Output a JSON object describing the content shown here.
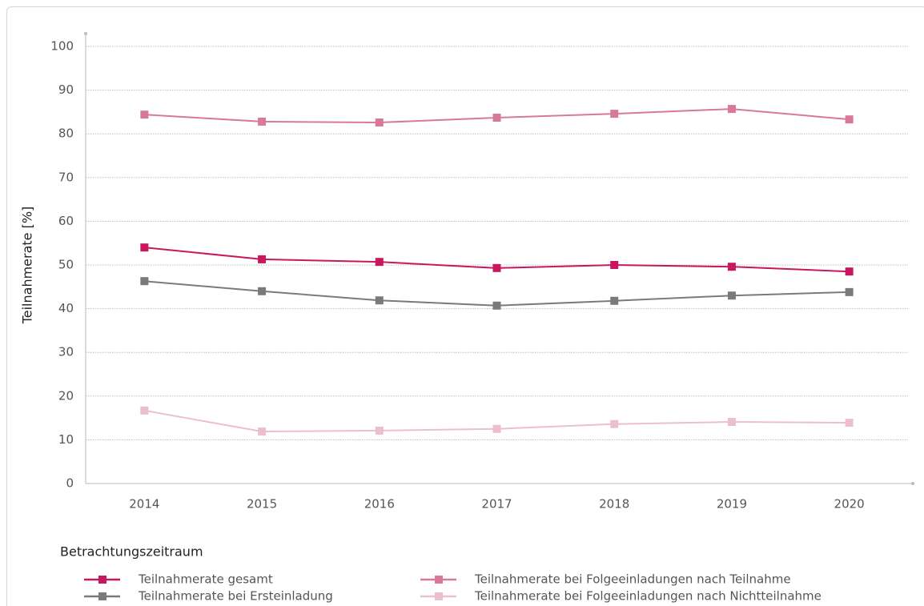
{
  "chart_data": {
    "type": "line",
    "y_label": "Teilnahmerate [%]",
    "x_label": "Betrachtungszeitraum",
    "categories": [
      "2014",
      "2015",
      "2016",
      "2017",
      "2018",
      "2019",
      "2020"
    ],
    "series": [
      {
        "name": "Teilnahmerate gesamt",
        "color": "#c8175e",
        "values": [
          54.0,
          51.3,
          50.7,
          49.3,
          50.0,
          49.6,
          48.5
        ]
      },
      {
        "name": "Teilnahmerate bei Ersteinladung",
        "color": "#7a7a7a",
        "values": [
          46.3,
          44.0,
          41.9,
          40.7,
          41.8,
          43.0,
          43.8
        ]
      },
      {
        "name": "Teilnahmerate bei Folgeeinladungen nach Teilnahme",
        "color": "#d9799a",
        "values": [
          84.4,
          82.8,
          82.6,
          83.7,
          84.6,
          85.7,
          83.3
        ]
      },
      {
        "name": "Teilnahmerate bei Folgeeinladungen nach Nichtteilnahme",
        "color": "#ebbfcc",
        "values": [
          16.7,
          11.9,
          12.1,
          12.5,
          13.6,
          14.1,
          13.9
        ]
      }
    ],
    "ylim": [
      0,
      100
    ],
    "yticks": [
      0,
      10,
      20,
      30,
      40,
      50,
      60,
      70,
      80,
      90,
      100
    ],
    "grid": true
  }
}
